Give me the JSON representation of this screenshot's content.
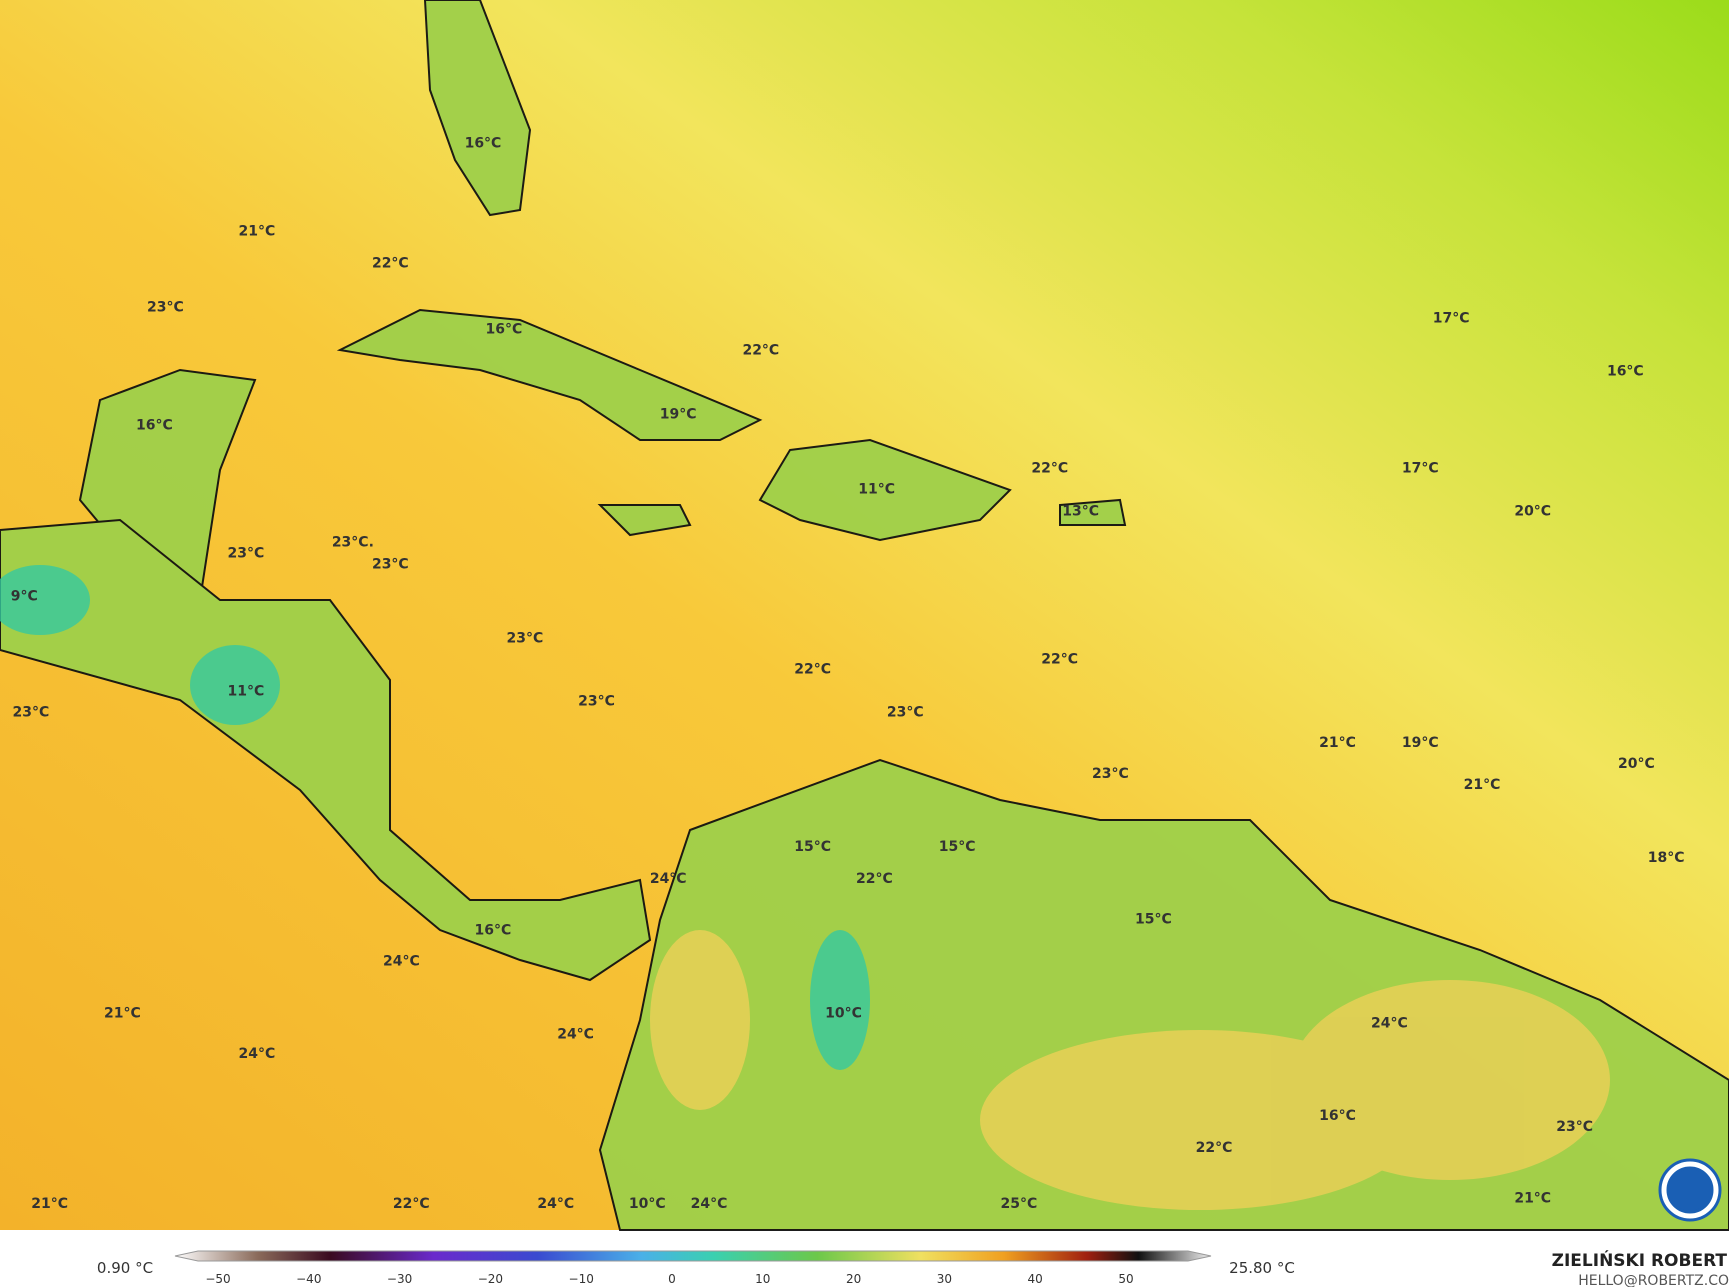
{
  "map": {
    "temperature_labels": [
      "21°C",
      "22°C",
      "23°C",
      "16°C",
      "16°C",
      "22°C",
      "16°C",
      "19°C",
      "11°C",
      "22°C",
      "13°C",
      "17°C",
      "16°C",
      "17°C",
      "20°C",
      "23°C",
      "23°C.",
      "23°C",
      "9°C",
      "23°C",
      "22°C",
      "22°C",
      "23°C",
      "23°C",
      "11°C",
      "23°C",
      "21°C",
      "19°C",
      "20°C",
      "21°C",
      "23°C",
      "15°C",
      "15°C",
      "22°C",
      "24°C",
      "18°C",
      "15°C",
      "16°C",
      "24°C",
      "21°C",
      "10°C",
      "24°C",
      "24°C",
      "24°C",
      "16°C",
      "23°C",
      "22°C",
      "21°C",
      "21°C",
      "22°C",
      "24°C",
      "10°C",
      "24°C",
      "25°C"
    ],
    "colorbar": {
      "min_label": "0.90 °C",
      "max_label": "25.80 °C",
      "ticks": [
        "−50",
        "−40",
        "−30",
        "−20",
        "−10",
        "0",
        "10",
        "20",
        "30",
        "40",
        "50"
      ]
    }
  },
  "credit": {
    "name": "ZIELIŃSKI ROBERT",
    "email": "HELLO@ROBERTZ.CO"
  }
}
